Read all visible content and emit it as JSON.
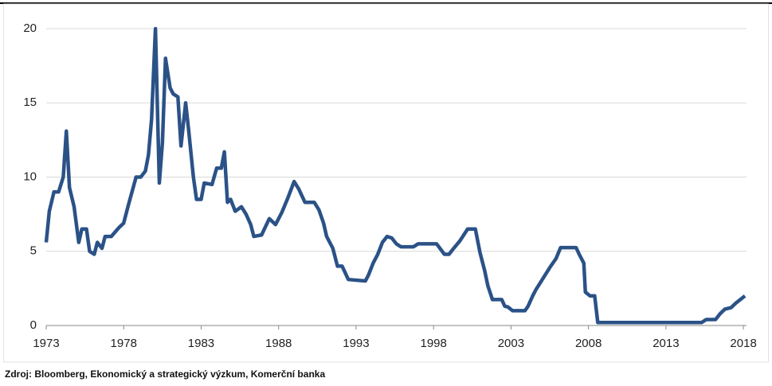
{
  "chart_data": {
    "type": "line",
    "source": "Zdroj: Bloomberg, Ekonomický a strategický výzkum, Komerční banka",
    "x": [
      1973.0,
      1973.2,
      1973.5,
      1973.8,
      1974.1,
      1974.3,
      1974.5,
      1974.8,
      1975.1,
      1975.3,
      1975.6,
      1975.8,
      1976.1,
      1976.3,
      1976.6,
      1976.8,
      1977.2,
      1977.7,
      1978.0,
      1978.3,
      1978.8,
      1979.1,
      1979.4,
      1979.6,
      1979.8,
      1980.05,
      1980.3,
      1980.5,
      1980.7,
      1981.0,
      1981.2,
      1981.5,
      1981.7,
      1982.0,
      1982.2,
      1982.5,
      1982.7,
      1983.0,
      1983.2,
      1983.7,
      1984.0,
      1984.3,
      1984.5,
      1984.7,
      1984.9,
      1985.2,
      1985.6,
      1985.9,
      1986.2,
      1986.4,
      1986.9,
      1987.4,
      1987.8,
      1988.2,
      1988.6,
      1989.0,
      1989.3,
      1989.7,
      1990.3,
      1990.6,
      1990.9,
      1991.1,
      1991.5,
      1991.8,
      1992.1,
      1992.5,
      1993.6,
      1993.8,
      1994.1,
      1994.4,
      1994.7,
      1995.0,
      1995.3,
      1995.6,
      1995.9,
      1996.7,
      1997.0,
      1998.2,
      1998.7,
      1999.0,
      1999.3,
      1999.7,
      2000.2,
      2000.7,
      2001.0,
      2001.3,
      2001.5,
      2001.8,
      2002.4,
      2002.6,
      2002.8,
      2003.1,
      2003.9,
      2004.1,
      2004.4,
      2004.6,
      2004.9,
      2005.5,
      2005.9,
      2006.2,
      2007.2,
      2007.4,
      2007.7,
      2007.8,
      2008.1,
      2008.4,
      2008.6,
      2015.3,
      2015.6,
      2016.2,
      2016.5,
      2016.8,
      2017.2,
      2017.5,
      2017.8,
      2018.1
    ],
    "series": [
      {
        "color": "#2b5287",
        "values": [
          5.6,
          7.7,
          9,
          9,
          10,
          13.1,
          9.3,
          8,
          5.6,
          6.5,
          6.5,
          5,
          4.8,
          5.6,
          5.2,
          6,
          6,
          6.6,
          6.9,
          8.1,
          10,
          10,
          10.4,
          11.5,
          13.9,
          20,
          9.6,
          12.3,
          18,
          16,
          15.6,
          15.4,
          12.1,
          15,
          13.1,
          10,
          8.5,
          8.5,
          9.6,
          9.5,
          10.6,
          10.6,
          11.7,
          8.3,
          8.5,
          7.7,
          8,
          7.5,
          6.8,
          6,
          6.1,
          7.2,
          6.8,
          7.6,
          8.6,
          9.7,
          9.2,
          8.3,
          8.3,
          7.8,
          6.9,
          6,
          5.2,
          4,
          4,
          3.1,
          3,
          3.4,
          4.2,
          4.8,
          5.6,
          6,
          5.9,
          5.5,
          5.3,
          5.3,
          5.5,
          5.5,
          4.8,
          4.8,
          5.2,
          5.7,
          6.5,
          6.5,
          4.9,
          3.7,
          2.7,
          1.75,
          1.75,
          1.3,
          1.25,
          1,
          1,
          1.3,
          2,
          2.4,
          2.9,
          3.9,
          4.5,
          5.25,
          5.25,
          4.8,
          4.2,
          2.25,
          2,
          2,
          0.2,
          0.2,
          0.4,
          0.4,
          0.8,
          1.1,
          1.2,
          1.5,
          1.75,
          2
        ]
      }
    ],
    "xlim": [
      1973,
      2018.2
    ],
    "xticks": [
      1973,
      1978,
      1983,
      1988,
      1993,
      1998,
      2003,
      2008,
      2013,
      2018
    ],
    "ylim": [
      0,
      20
    ],
    "yticks": [
      0,
      5,
      10,
      15,
      20
    ],
    "grid": true
  }
}
